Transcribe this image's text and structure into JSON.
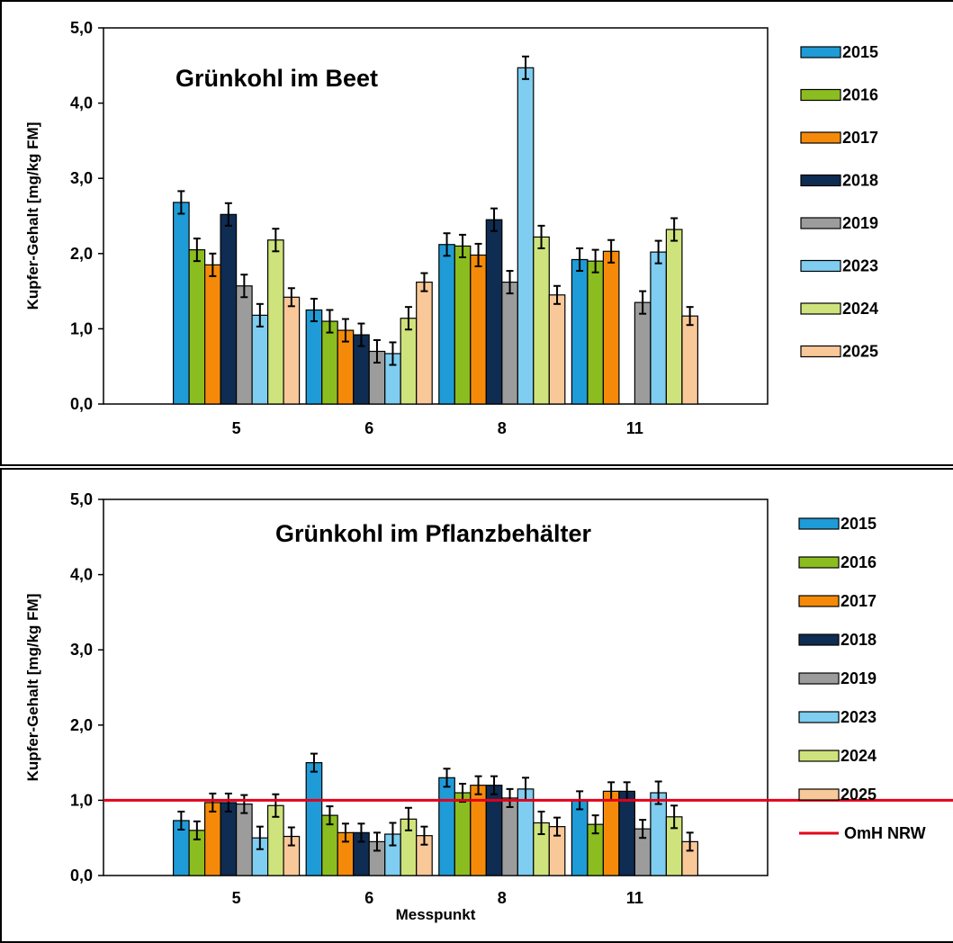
{
  "chart_data": [
    {
      "type": "bar",
      "title": "Grünkohl im Beet",
      "xlabel": "",
      "ylabel": "Kupfer-Gehalt [mg/kg FM]",
      "ylim": [
        0,
        5
      ],
      "yticks": [
        "0,0",
        "1,0",
        "2,0",
        "3,0",
        "4,0",
        "5,0"
      ],
      "categories": [
        "5",
        "6",
        "8",
        "11"
      ],
      "grid": false,
      "legend_position": "right",
      "error_bars": true,
      "series": [
        {
          "name": "2015",
          "color": "#1f9bd7",
          "values": [
            2.68,
            1.25,
            2.12,
            1.92
          ],
          "errors": [
            0.15,
            0.15,
            0.15,
            0.15
          ]
        },
        {
          "name": "2016",
          "color": "#8cbd20",
          "values": [
            2.05,
            1.1,
            2.1,
            1.9
          ],
          "errors": [
            0.15,
            0.15,
            0.15,
            0.15
          ]
        },
        {
          "name": "2017",
          "color": "#f58a0a",
          "values": [
            1.85,
            0.98,
            1.98,
            2.03
          ],
          "errors": [
            0.15,
            0.15,
            0.15,
            0.15
          ]
        },
        {
          "name": "2018",
          "color": "#0f2c52",
          "values": [
            2.52,
            0.92,
            2.45,
            null
          ],
          "errors": [
            0.15,
            0.15,
            0.15,
            null
          ]
        },
        {
          "name": "2019",
          "color": "#9c9c9c",
          "values": [
            1.57,
            0.7,
            1.62,
            1.35
          ],
          "errors": [
            0.15,
            0.15,
            0.15,
            0.15
          ]
        },
        {
          "name": "2023",
          "color": "#7fcdf0",
          "values": [
            1.18,
            0.67,
            4.47,
            2.02
          ],
          "errors": [
            0.15,
            0.15,
            0.15,
            0.15
          ]
        },
        {
          "name": "2024",
          "color": "#cfe37c",
          "values": [
            2.18,
            1.14,
            2.22,
            2.32
          ],
          "errors": [
            0.15,
            0.15,
            0.15,
            0.15
          ]
        },
        {
          "name": "2025",
          "color": "#f8c899",
          "values": [
            1.42,
            1.62,
            1.45,
            1.17
          ],
          "errors": [
            0.12,
            0.12,
            0.12,
            0.12
          ]
        }
      ]
    },
    {
      "type": "bar",
      "title": "Grünkohl im Pflanzbehälter",
      "xlabel": "Messpunkt",
      "ylabel": "Kupfer-Gehalt [mg/kg FM]",
      "ylim": [
        0,
        5
      ],
      "yticks": [
        "0,0",
        "1,0",
        "2,0",
        "3,0",
        "4,0",
        "5,0"
      ],
      "categories": [
        "5",
        "6",
        "8",
        "11"
      ],
      "grid": false,
      "legend_position": "right",
      "error_bars": true,
      "reference_line": {
        "name": "OmH NRW",
        "value": 1.0,
        "color": "#e3001b"
      },
      "series": [
        {
          "name": "2015",
          "color": "#1f9bd7",
          "values": [
            0.73,
            1.5,
            1.3,
            1.0
          ],
          "errors": [
            0.12,
            0.12,
            0.12,
            0.12
          ]
        },
        {
          "name": "2016",
          "color": "#8cbd20",
          "values": [
            0.6,
            0.8,
            1.1,
            0.68
          ],
          "errors": [
            0.12,
            0.12,
            0.12,
            0.12
          ]
        },
        {
          "name": "2017",
          "color": "#f58a0a",
          "values": [
            0.97,
            0.57,
            1.2,
            1.12
          ],
          "errors": [
            0.12,
            0.12,
            0.12,
            0.12
          ]
        },
        {
          "name": "2018",
          "color": "#0f2c52",
          "values": [
            0.97,
            0.57,
            1.2,
            1.12
          ],
          "errors": [
            0.12,
            0.12,
            0.12,
            0.12
          ]
        },
        {
          "name": "2019",
          "color": "#9c9c9c",
          "values": [
            0.95,
            0.45,
            1.03,
            0.62
          ],
          "errors": [
            0.12,
            0.12,
            0.12,
            0.12
          ]
        },
        {
          "name": "2023",
          "color": "#7fcdf0",
          "values": [
            0.5,
            0.55,
            1.15,
            1.1
          ],
          "errors": [
            0.15,
            0.15,
            0.15,
            0.15
          ]
        },
        {
          "name": "2024",
          "color": "#cfe37c",
          "values": [
            0.93,
            0.75,
            0.7,
            0.78
          ],
          "errors": [
            0.15,
            0.15,
            0.15,
            0.15
          ]
        },
        {
          "name": "2025",
          "color": "#f8c899",
          "values": [
            0.52,
            0.53,
            0.65,
            0.45
          ],
          "errors": [
            0.12,
            0.12,
            0.12,
            0.12
          ]
        }
      ]
    }
  ]
}
